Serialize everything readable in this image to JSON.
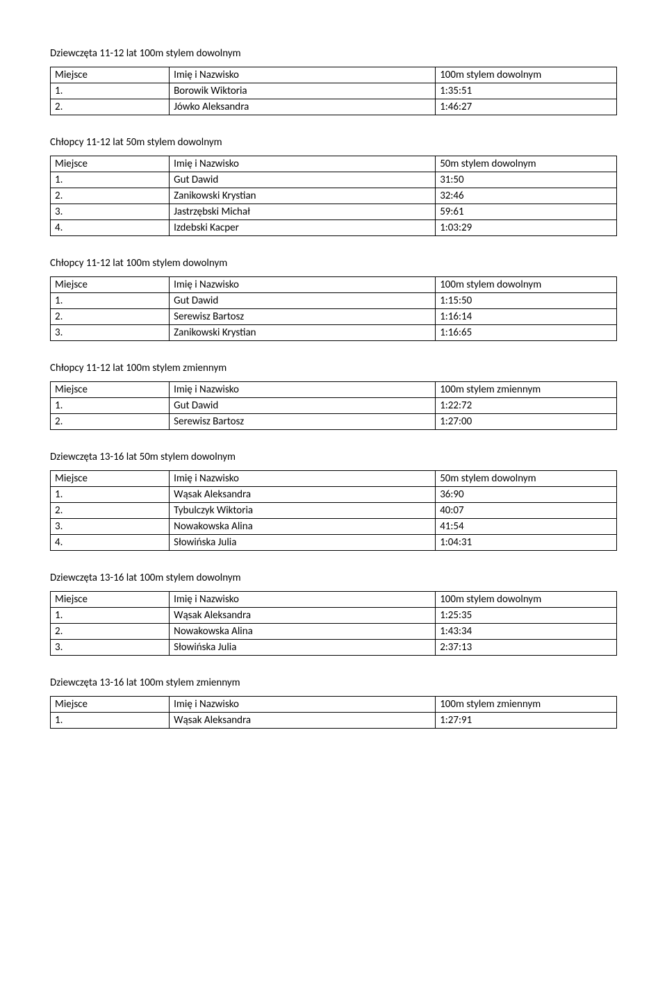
{
  "sections": [
    {
      "title": "Dziewczęta 11-12 lat 100m stylem dowolnym",
      "headers": [
        "Miejsce",
        "Imię i Nazwisko",
        "100m stylem dowolnym"
      ],
      "rows": [
        [
          "1.",
          "Borowik Wiktoria",
          "1:35:51"
        ],
        [
          "2.",
          "Jówko Aleksandra",
          "1:46:27"
        ]
      ]
    },
    {
      "title": "Chłopcy 11-12 lat 50m stylem dowolnym",
      "headers": [
        "Miejsce",
        "Imię i Nazwisko",
        "50m stylem dowolnym"
      ],
      "rows": [
        [
          "1.",
          "Gut Dawid",
          "31:50"
        ],
        [
          "2.",
          "Zanikowski Krystian",
          "32:46"
        ],
        [
          "3.",
          "Jastrzębski Michał",
          "59:61"
        ],
        [
          "4.",
          "Izdebski Kacper",
          "1:03:29"
        ]
      ]
    },
    {
      "title": "Chłopcy 11-12 lat 100m stylem dowolnym",
      "headers": [
        "Miejsce",
        "Imię i Nazwisko",
        "100m stylem dowolnym"
      ],
      "rows": [
        [
          "1.",
          "Gut Dawid",
          "1:15:50"
        ],
        [
          "2.",
          "Serewisz Bartosz",
          "1:16:14"
        ],
        [
          "3.",
          "Zanikowski Krystian",
          "1:16:65"
        ]
      ]
    },
    {
      "title": "Chłopcy 11-12 lat 100m stylem zmiennym",
      "headers": [
        "Miejsce",
        "Imię i Nazwisko",
        "100m stylem zmiennym"
      ],
      "rows": [
        [
          "1.",
          "Gut Dawid",
          "1:22:72"
        ],
        [
          "2.",
          "Serewisz Bartosz",
          "1:27:00"
        ]
      ]
    },
    {
      "title": "Dziewczęta 13-16 lat 50m stylem dowolnym",
      "headers": [
        "Miejsce",
        "Imię i Nazwisko",
        "50m stylem dowolnym"
      ],
      "rows": [
        [
          "1.",
          "Wąsak Aleksandra",
          "36:90"
        ],
        [
          "2.",
          "Tybulczyk Wiktoria",
          "40:07"
        ],
        [
          "3.",
          "Nowakowska Alina",
          "41:54"
        ],
        [
          "4.",
          "Słowińska Julia",
          "1:04:31"
        ]
      ]
    },
    {
      "title": "Dziewczęta 13-16 lat 100m stylem dowolnym",
      "headers": [
        "Miejsce",
        "Imię i Nazwisko",
        "100m stylem dowolnym"
      ],
      "rows": [
        [
          "1.",
          "Wąsak Aleksandra",
          "1:25:35"
        ],
        [
          "2.",
          "Nowakowska Alina",
          "1:43:34"
        ],
        [
          "3.",
          "Słowińska Julia",
          "2:37:13"
        ]
      ]
    },
    {
      "title": "Dziewczęta 13-16 lat 100m stylem zmiennym",
      "headers": [
        "Miejsce",
        "Imię i Nazwisko",
        "100m stylem zmiennym"
      ],
      "rows": [
        [
          "1.",
          "Wąsak Aleksandra",
          "1:27:91"
        ]
      ]
    }
  ]
}
